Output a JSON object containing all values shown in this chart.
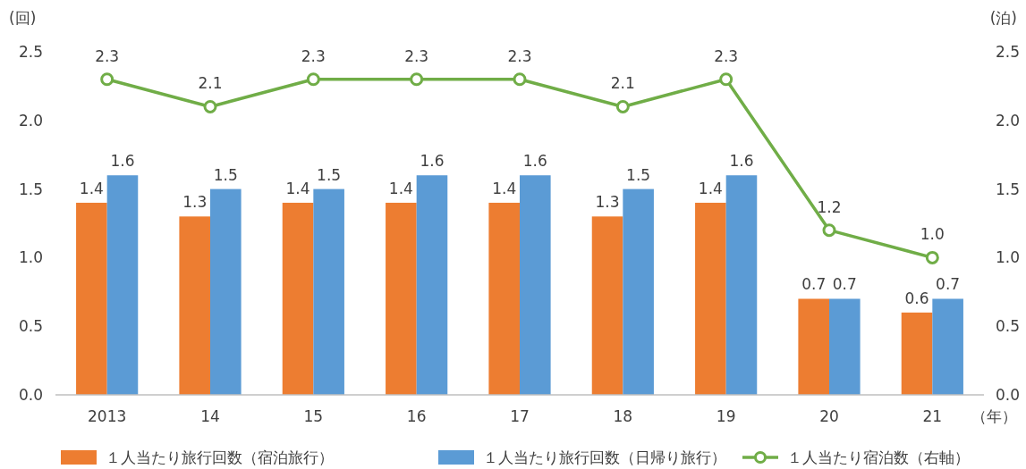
{
  "chart_data": {
    "type": "bar",
    "ylabel": "(回)",
    "y2label": "(泊)",
    "xlabel": "（年）",
    "categories": [
      "2013",
      "14",
      "15",
      "16",
      "17",
      "18",
      "19",
      "20",
      "21"
    ],
    "series": [
      {
        "name": "１人当たり旅行回数（宿泊旅行）",
        "color": "#ed7d31",
        "values": [
          1.4,
          1.3,
          1.4,
          1.4,
          1.4,
          1.3,
          1.4,
          0.7,
          0.6
        ]
      },
      {
        "name": "１人当たり旅行回数（日帰り旅行）",
        "color": "#5b9bd5",
        "values": [
          1.6,
          1.5,
          1.5,
          1.6,
          1.6,
          1.5,
          1.6,
          0.7,
          0.7
        ]
      },
      {
        "name": "１人当たり宿泊数（右軸）",
        "color": "#70ad47",
        "type": "line",
        "axis": "y2",
        "marker": "circle",
        "values": [
          2.3,
          2.1,
          2.3,
          2.3,
          2.3,
          2.1,
          2.3,
          1.2,
          1.0
        ],
        "value_labels": [
          "2.3",
          "2.1",
          "2.3",
          "2.3",
          "2.3",
          "2.1",
          "2.3",
          "1.2",
          "1.0"
        ]
      }
    ],
    "ylim": [
      0,
      2.5
    ],
    "yticks": [
      {
        "value": 0,
        "label": "0.0"
      },
      {
        "value": 0.5,
        "label": "0.5"
      },
      {
        "value": 1,
        "label": "1.0"
      },
      {
        "value": 1.5,
        "label": "1.5"
      },
      {
        "value": 2,
        "label": "2.0"
      },
      {
        "value": 2.5,
        "label": "2.5"
      }
    ],
    "y2lim": [
      0,
      2.5
    ],
    "y2ticks": [
      {
        "value": 0,
        "label": "0.0"
      },
      {
        "value": 0.5,
        "label": "0.5"
      },
      {
        "value": 1,
        "label": "1.0"
      },
      {
        "value": 1.5,
        "label": "1.5"
      },
      {
        "value": 2,
        "label": "2.0"
      },
      {
        "value": 2.5,
        "label": "2.5"
      }
    ],
    "data_labels": true,
    "legend": "bottom",
    "grid": false
  }
}
